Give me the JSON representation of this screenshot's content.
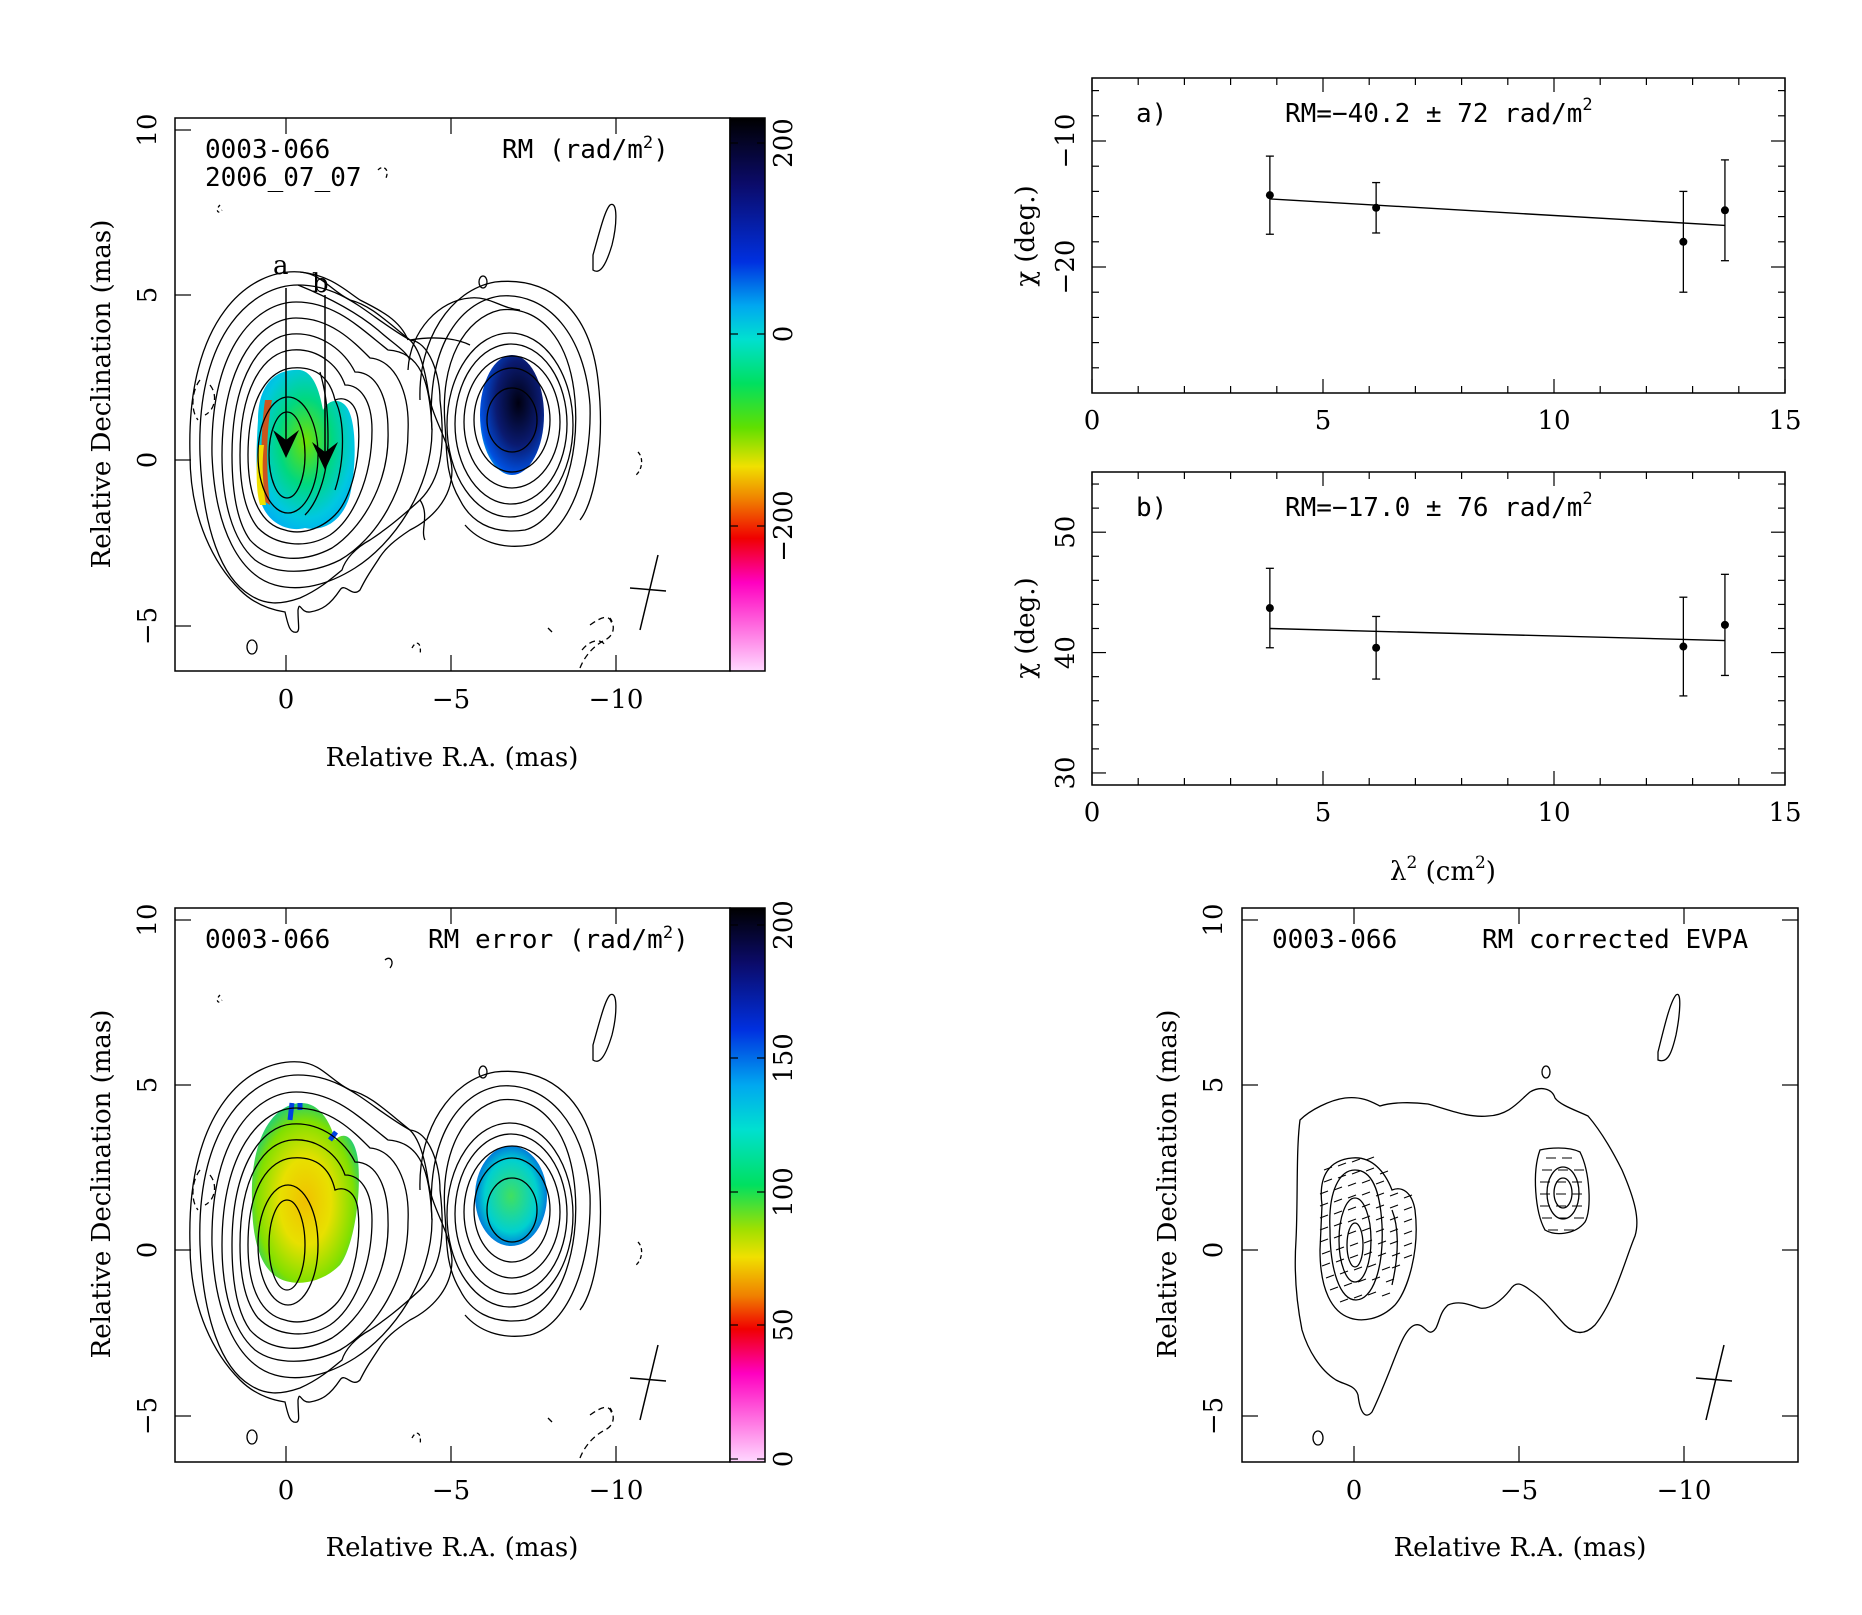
{
  "colors": {
    "ink": "#000000",
    "background": "#ffffff"
  },
  "panels": {
    "rm_map": {
      "source": "0003-066",
      "epoch": "2006_07_07",
      "map_label": "RM (rad/m",
      "map_label_sup": "2",
      "map_label_close": ")",
      "marker_a": "a",
      "marker_b": "b",
      "xlabel": "Relative R.A. (mas)",
      "ylabel": "Relative Declination (mas)",
      "xticks": [
        "0",
        "−5",
        "−10"
      ],
      "yticks": [
        "−5",
        "0",
        "5",
        "10"
      ],
      "colorbar_ticks": [
        "200",
        "0",
        "−200"
      ]
    },
    "rm_error_map": {
      "source": "0003-066",
      "map_label": "RM error (rad/m",
      "map_label_sup": "2",
      "map_label_close": ")",
      "xlabel": "Relative R.A. (mas)",
      "ylabel": "Relative Declination (mas)",
      "xticks": [
        "0",
        "−5",
        "−10"
      ],
      "yticks": [
        "−5",
        "0",
        "5",
        "10"
      ],
      "colorbar_ticks": [
        "200",
        "150",
        "100",
        "50",
        "0"
      ]
    },
    "evpa_map": {
      "source": "0003-066",
      "map_label": "RM corrected EVPA",
      "xlabel": "Relative R.A. (mas)",
      "ylabel": "Relative Declination (mas)",
      "xticks": [
        "0",
        "−5",
        "−10"
      ],
      "yticks": [
        "−5",
        "0",
        "5",
        "10"
      ]
    },
    "fit_a": {
      "tag": "a)",
      "rm_text": "RM=−40.2 ± 72 rad/m",
      "rm_sup": "2",
      "ylabel": "χ (deg.)",
      "yticks": [
        "−10",
        "−20"
      ],
      "xticks": [
        "0",
        "5",
        "10",
        "15"
      ]
    },
    "fit_b": {
      "tag": "b)",
      "rm_text": "RM=−17.0 ± 76 rad/m",
      "rm_sup": "2",
      "ylabel": "χ (deg.)",
      "yticks": [
        "30",
        "40",
        "50"
      ],
      "xticks": [
        "0",
        "5",
        "10",
        "15"
      ],
      "xlabel": "λ",
      "xlabel_sup": "2",
      "xlabel_rest": " (cm",
      "xlabel_sup2": "2",
      "xlabel_close": ")"
    }
  },
  "chart_data": [
    {
      "type": "scatter",
      "panel": "a)",
      "xlim": [
        0,
        15
      ],
      "ylim": [
        -30,
        -5
      ],
      "y_inverted": true,
      "points": [
        {
          "x": 3.85,
          "y": -14.3,
          "err": 3.1
        },
        {
          "x": 6.15,
          "y": -15.3,
          "err": 2.0
        },
        {
          "x": 12.8,
          "y": -18.0,
          "err": 4.0
        },
        {
          "x": 13.7,
          "y": -15.5,
          "err": 4.0
        }
      ],
      "fit": [
        [
          3.85,
          -14.6
        ],
        [
          13.7,
          -16.7
        ]
      ],
      "annotation": "RM=−40.2 ± 72 rad/m²"
    },
    {
      "type": "scatter",
      "panel": "b)",
      "xlim": [
        0,
        15
      ],
      "ylim": [
        29,
        55
      ],
      "points": [
        {
          "x": 3.85,
          "y": 43.7,
          "err": 3.3
        },
        {
          "x": 6.15,
          "y": 40.4,
          "err": 2.6
        },
        {
          "x": 12.8,
          "y": 40.5,
          "err": 4.1
        },
        {
          "x": 13.7,
          "y": 42.3,
          "err": 4.2
        }
      ],
      "fit": [
        [
          3.85,
          42.0
        ],
        [
          13.7,
          41.0
        ]
      ],
      "annotation": "RM=−17.0 ± 76 rad/m²"
    }
  ]
}
